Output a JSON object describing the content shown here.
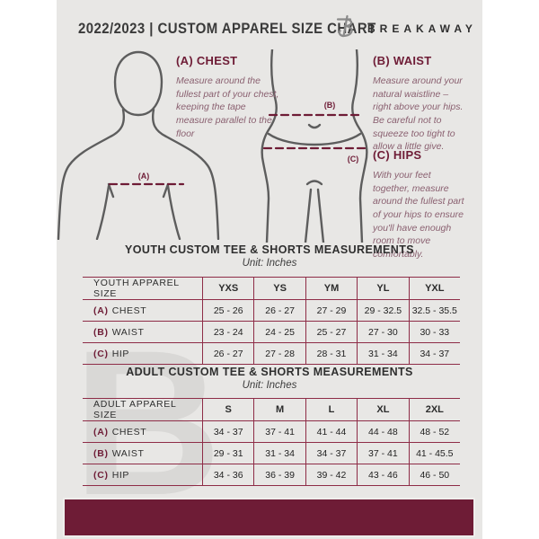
{
  "header": {
    "title": "2022/2023  |  CUSTOM APPAREL SIZE CHART",
    "brand": "BREAKAWAY"
  },
  "instructions": {
    "chest": {
      "heading": "(A) CHEST",
      "body": "Measure around the fullest part of your chest, keeping the tape measure parallel to the floor"
    },
    "waist": {
      "heading": "(B) WAIST",
      "body": "Measure around your natural waistline – right above your hips. Be careful not to squeeze too tight to allow a little give."
    },
    "hips": {
      "heading": "(C) HIPS",
      "body": "With your feet together, measure around the fullest part of your hips to ensure you'll have enough room to move comfortably."
    }
  },
  "diagram": {
    "chest_label": "(A)",
    "waist_label": "(B)",
    "hips_label": "(C)"
  },
  "tables": [
    {
      "title": "YOUTH CUSTOM TEE & SHORTS MEASUREMENTS",
      "unit": "Unit: Inches",
      "header_label": "YOUTH APPAREL SIZE",
      "columns": [
        "YXS",
        "YS",
        "YM",
        "YL",
        "YXL"
      ],
      "rows": [
        {
          "key": "(A)",
          "label": "CHEST",
          "values": [
            "25 - 26",
            "26 - 27",
            "27 - 29",
            "29 - 32.5",
            "32.5 - 35.5"
          ]
        },
        {
          "key": "(B)",
          "label": "WAIST",
          "values": [
            "23 - 24",
            "24 - 25",
            "25 - 27",
            "27 - 30",
            "30 - 33"
          ]
        },
        {
          "key": "(C)",
          "label": "HIP",
          "values": [
            "26 - 27",
            "27 - 28",
            "28 - 31",
            "31 - 34",
            "34 - 37"
          ]
        }
      ]
    },
    {
      "title": "ADULT CUSTOM TEE & SHORTS MEASUREMENTS",
      "unit": "Unit: Inches",
      "header_label": "ADULT APPAREL SIZE",
      "columns": [
        "S",
        "M",
        "L",
        "XL",
        "2XL"
      ],
      "rows": [
        {
          "key": "(A)",
          "label": "CHEST",
          "values": [
            "34 - 37",
            "37 - 41",
            "41 - 44",
            "44 - 48",
            "48 - 52"
          ]
        },
        {
          "key": "(B)",
          "label": "WAIST",
          "values": [
            "29 - 31",
            "31 - 34",
            "34 - 37",
            "37 - 41",
            "41 - 45.5"
          ]
        },
        {
          "key": "(C)",
          "label": "HIP",
          "values": [
            "34 - 36",
            "36 - 39",
            "39 - 42",
            "43 - 46",
            "46 - 50"
          ]
        }
      ]
    }
  ],
  "watermark_letter": "B",
  "colors": {
    "maroon": "#6e1c36",
    "page_background": "#e8e7e5",
    "body_outline_gray": "#5d5d5d",
    "instruction_text": "#8a6070"
  }
}
